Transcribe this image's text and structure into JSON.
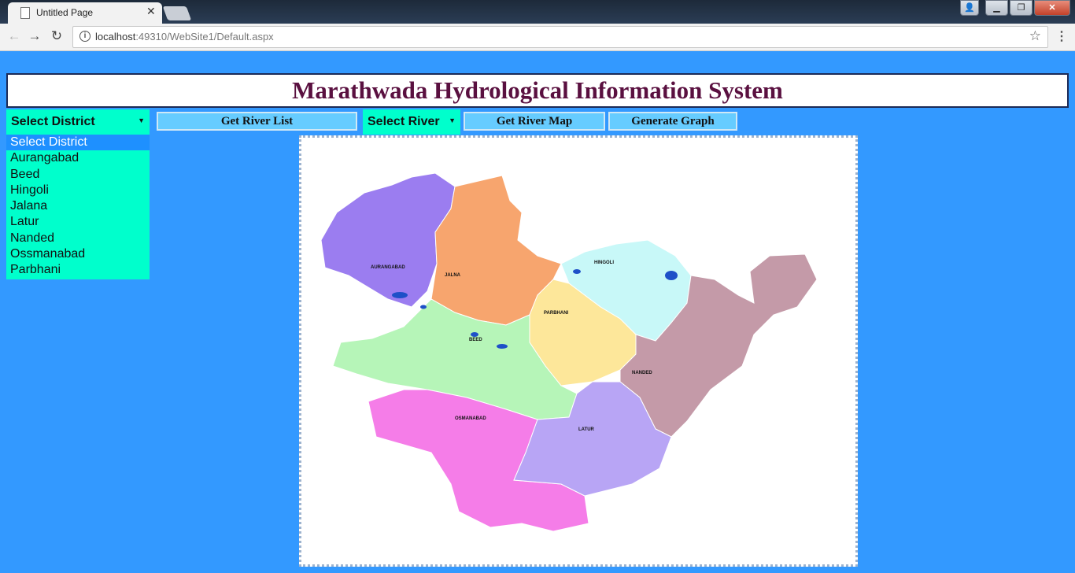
{
  "browser": {
    "tab_title": "Untitled Page",
    "url_host": "localhost",
    "url_rest": ":49310/WebSite1/Default.aspx"
  },
  "page": {
    "title": "Marathwada Hydrological Information System",
    "district_select": {
      "selected": "Select District",
      "options": [
        "Select District",
        "Aurangabad",
        "Beed",
        "Hingoli",
        "Jalana",
        "Latur",
        "Nanded",
        "Ossmanabad",
        "Parbhani"
      ]
    },
    "buttons": {
      "get_river_list": "Get River List",
      "get_river_map": "Get  River Map",
      "generate_graph": "Generate Graph"
    },
    "river_select": {
      "selected": "Select River"
    },
    "map": {
      "labels": {
        "aurangabad": "AURANGABAD",
        "jalna": "JALNA",
        "hingoli": "HINGOLI",
        "parbhani": "PARBHANI",
        "beed": "BEED",
        "nanded": "NANDED",
        "osmanabad": "OSMANABAD",
        "latur": "LATUR"
      },
      "colors": {
        "aurangabad": "#9b7df0",
        "jalna": "#f7a56e",
        "hingoli": "#c8f8f8",
        "parbhani": "#fde79a",
        "beed": "#b6f5b8",
        "nanded": "#c49aa8",
        "osmanabad": "#f57de8",
        "latur": "#b8a5f5"
      }
    }
  }
}
